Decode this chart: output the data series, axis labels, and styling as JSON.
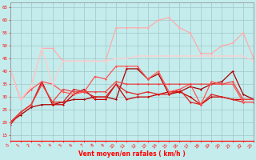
{
  "xlabel": "Vent moyen/en rafales ( km/h )",
  "xlim": [
    0,
    23
  ],
  "ylim": [
    13,
    67
  ],
  "yticks": [
    15,
    20,
    25,
    30,
    35,
    40,
    45,
    50,
    55,
    60,
    65
  ],
  "xticks": [
    0,
    1,
    2,
    3,
    4,
    5,
    6,
    7,
    8,
    9,
    10,
    11,
    12,
    13,
    14,
    15,
    16,
    17,
    18,
    19,
    20,
    21,
    22,
    23
  ],
  "background_color": "#c5ecec",
  "grid_color": "#a0c8c8",
  "lines": [
    {
      "x": [
        0,
        1,
        2,
        3,
        4,
        5,
        6,
        7,
        8,
        9,
        10,
        11,
        12,
        13,
        14,
        15,
        16,
        17,
        18,
        19,
        20,
        21,
        22,
        23
      ],
      "y": [
        20,
        23,
        26,
        27,
        27,
        28,
        29,
        29,
        30,
        30,
        29,
        41,
        41,
        37,
        39,
        31,
        32,
        34,
        33,
        35,
        36,
        40,
        31,
        29
      ],
      "color": "#aa0000",
      "lw": 0.9,
      "marker": "D",
      "ms": 1.5
    },
    {
      "x": [
        0,
        1,
        2,
        3,
        4,
        5,
        6,
        7,
        8,
        9,
        10,
        11,
        12,
        13,
        14,
        15,
        16,
        17,
        18,
        19,
        20,
        21,
        22,
        23
      ],
      "y": [
        20,
        24,
        27,
        36,
        27,
        27,
        31,
        33,
        29,
        29,
        35,
        29,
        30,
        30,
        31,
        32,
        32,
        30,
        27,
        30,
        30,
        29,
        29,
        29
      ],
      "color": "#cc0000",
      "lw": 0.9,
      "marker": "D",
      "ms": 1.5
    },
    {
      "x": [
        0,
        1,
        2,
        3,
        4,
        5,
        6,
        7,
        8,
        9,
        10,
        11,
        12,
        13,
        14,
        15,
        16,
        17,
        18,
        19,
        20,
        21,
        22,
        23
      ],
      "y": [
        19,
        24,
        27,
        35,
        28,
        28,
        33,
        32,
        30,
        30,
        35,
        32,
        31,
        32,
        31,
        31,
        33,
        28,
        27,
        31,
        30,
        29,
        28,
        28
      ],
      "color": "#dd2222",
      "lw": 0.9,
      "marker": "D",
      "ms": 1.5
    },
    {
      "x": [
        0,
        1,
        2,
        3,
        4,
        5,
        6,
        7,
        8,
        9,
        10,
        11,
        12,
        13,
        14,
        15,
        16,
        17,
        18,
        19,
        20,
        21,
        22,
        23
      ],
      "y": [
        41,
        29,
        33,
        36,
        35,
        32,
        31,
        32,
        38,
        37,
        42,
        42,
        42,
        37,
        40,
        32,
        33,
        35,
        27,
        36,
        35,
        35,
        28,
        28
      ],
      "color": "#ff5555",
      "lw": 0.9,
      "marker": "D",
      "ms": 1.5
    },
    {
      "x": [
        0,
        1,
        2,
        3,
        4,
        5,
        6,
        7,
        8,
        9,
        10,
        11,
        12,
        13,
        14,
        15,
        16,
        17,
        18,
        19,
        20,
        21,
        22,
        23
      ],
      "y": [
        41,
        29,
        34,
        49,
        49,
        44,
        44,
        44,
        44,
        44,
        57,
        57,
        57,
        57,
        60,
        61,
        57,
        55,
        47,
        47,
        50,
        51,
        55,
        45
      ],
      "color": "#ffaaaa",
      "lw": 0.9,
      "marker": "D",
      "ms": 1.5
    },
    {
      "x": [
        0,
        1,
        2,
        3,
        4,
        5,
        6,
        7,
        8,
        9,
        10,
        11,
        12,
        13,
        14,
        15,
        16,
        17,
        18,
        19,
        20,
        21,
        22,
        23
      ],
      "y": [
        41,
        29,
        34,
        49,
        35,
        44,
        44,
        44,
        44,
        44,
        45,
        45,
        46,
        46,
        46,
        46,
        46,
        46,
        46,
        46,
        46,
        46,
        46,
        44
      ],
      "color": "#ffcccc",
      "lw": 0.9,
      "marker": "D",
      "ms": 1.5
    },
    {
      "x": [
        0,
        1,
        2,
        3,
        4,
        5,
        6,
        7,
        8,
        9,
        10,
        11,
        12,
        13,
        14,
        15,
        16,
        17,
        18,
        19,
        20,
        21,
        22,
        23
      ],
      "y": [
        20,
        24,
        27,
        35,
        28,
        33,
        32,
        32,
        32,
        32,
        36,
        35,
        35,
        35,
        35,
        35,
        35,
        35,
        35,
        35,
        35,
        36,
        29,
        29
      ],
      "color": "#ee4444",
      "lw": 0.9,
      "marker": "D",
      "ms": 1.5
    }
  ]
}
